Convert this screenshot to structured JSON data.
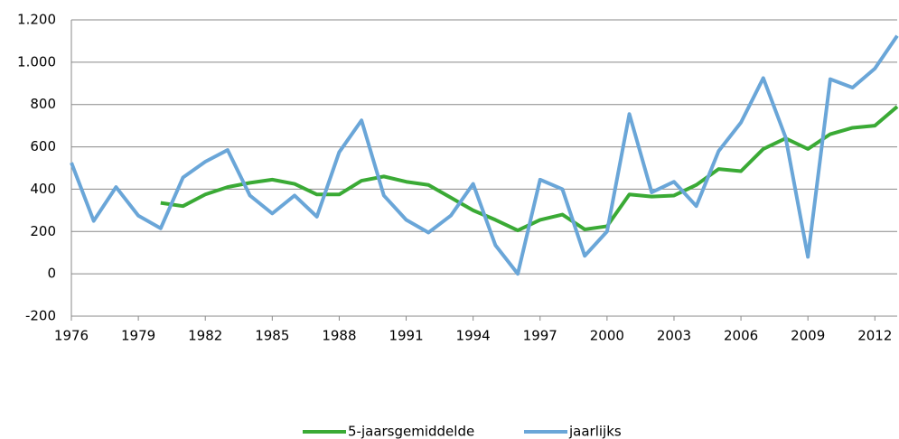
{
  "chart_data": {
    "type": "line",
    "x": [
      1976,
      1977,
      1978,
      1979,
      1980,
      1981,
      1982,
      1983,
      1984,
      1985,
      1986,
      1987,
      1988,
      1989,
      1990,
      1991,
      1992,
      1993,
      1994,
      1995,
      1996,
      1997,
      1998,
      1999,
      2000,
      2001,
      2002,
      2003,
      2004,
      2005,
      2006,
      2007,
      2008,
      2009,
      2010,
      2011,
      2012,
      2013
    ],
    "xlim": [
      1976,
      2013
    ],
    "xticks": [
      1976,
      1979,
      1982,
      1985,
      1988,
      1991,
      1994,
      1997,
      2000,
      2003,
      2006,
      2009,
      2012
    ],
    "ylim": [
      -200,
      1200
    ],
    "yticks": [
      -200,
      0,
      200,
      400,
      600,
      800,
      {
        "value": 1000,
        "label": "1.000"
      },
      {
        "value": 1200,
        "label": "1.200"
      }
    ],
    "grid": true,
    "legend": "bottom",
    "series": [
      {
        "name": "5-jaarsgemiddelde",
        "color": "#3aaa35",
        "values": [
          null,
          null,
          null,
          null,
          335,
          320,
          375,
          410,
          430,
          445,
          425,
          375,
          375,
          440,
          460,
          435,
          420,
          360,
          300,
          255,
          205,
          255,
          280,
          210,
          225,
          375,
          365,
          370,
          420,
          495,
          485,
          590,
          640,
          590,
          660,
          690,
          700,
          790
        ]
      },
      {
        "name": "jaarlijks",
        "color": "#6aa6d8",
        "values": [
          525,
          250,
          410,
          275,
          215,
          455,
          530,
          585,
          370,
          285,
          370,
          270,
          575,
          725,
          370,
          255,
          195,
          275,
          425,
          135,
          0,
          445,
          400,
          85,
          200,
          755,
          385,
          435,
          320,
          580,
          715,
          925,
          645,
          80,
          920,
          880,
          970,
          1125
        ]
      }
    ]
  }
}
